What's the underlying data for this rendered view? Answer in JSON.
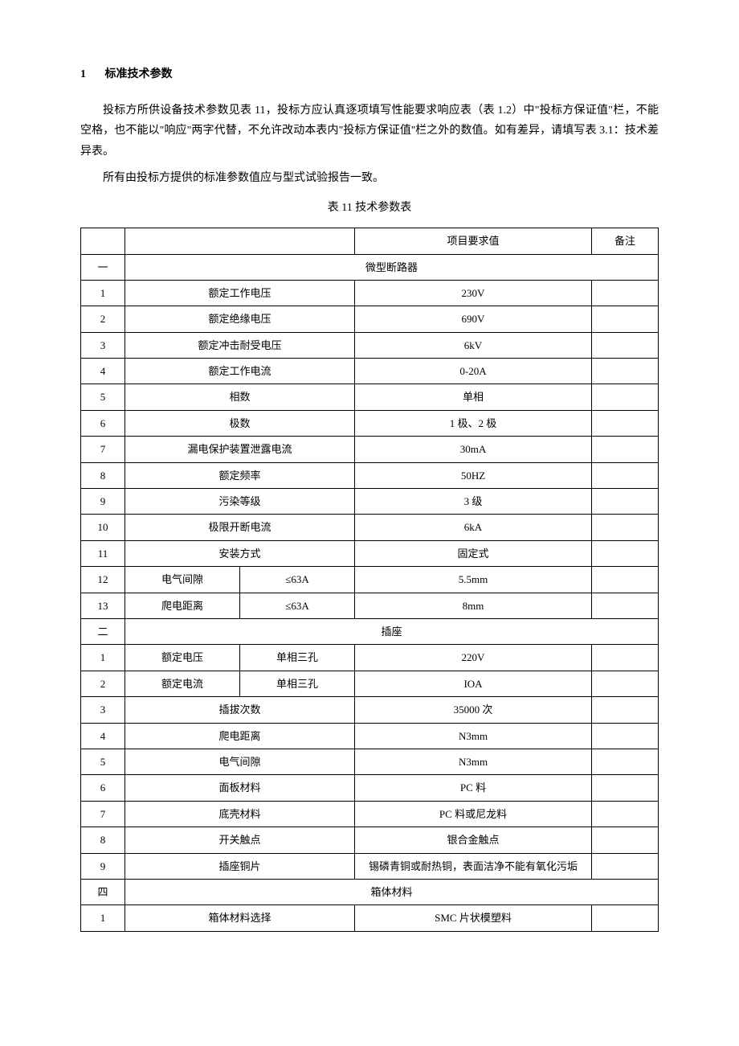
{
  "heading_num": "1",
  "heading_text": "标准技术参数",
  "para1": "投标方所供设备技术参数见表 11，投标方应认真逐项填写性能要求响应表（表 1.2）中\"投标方保证值\"栏，不能空格，也不能以\"响应\"两字代替，不允许改动本表内\"投标方保证值''栏之外的数值。如有差异，请填写表 3.1：技术差异表。",
  "para2": "所有由投标方提供的标准参数值应与型式试验报告一致。",
  "table_caption": "表 11 技术参数表",
  "header": {
    "value_col": "项目要求值",
    "note_col": "备注"
  },
  "sections": [
    {
      "idx": "一",
      "title": "微型断路器",
      "rows": [
        {
          "n": "1",
          "p1": "额定工作电压",
          "p2": "",
          "v": "230V",
          "note": ""
        },
        {
          "n": "2",
          "p1": "额定绝缘电压",
          "p2": "",
          "v": "690V",
          "note": ""
        },
        {
          "n": "3",
          "p1": "额定冲击耐受电压",
          "p2": "",
          "v": "6kV",
          "note": ""
        },
        {
          "n": "4",
          "p1": "额定工作电流",
          "p2": "",
          "v": "0-20A",
          "note": ""
        },
        {
          "n": "5",
          "p1": "相数",
          "p2": "",
          "v": "单相",
          "note": ""
        },
        {
          "n": "6",
          "p1": "极数",
          "p2": "",
          "v": "1 极、2 极",
          "note": ""
        },
        {
          "n": "7",
          "p1": "漏电保护装置泄露电流",
          "p2": "",
          "v": "30mA",
          "note": ""
        },
        {
          "n": "8",
          "p1": "额定频率",
          "p2": "",
          "v": "50HZ",
          "note": ""
        },
        {
          "n": "9",
          "p1": "污染等级",
          "p2": "",
          "v": "3 级",
          "note": ""
        },
        {
          "n": "10",
          "p1": "极限开断电流",
          "p2": "",
          "v": "6kA",
          "note": ""
        },
        {
          "n": "11",
          "p1": "安装方式",
          "p2": "",
          "v": "固定式",
          "note": ""
        },
        {
          "n": "12",
          "p1": "电气间隙",
          "p2": "≤63A",
          "v": "5.5mm",
          "note": ""
        },
        {
          "n": "13",
          "p1": "爬电距离",
          "p2": "≤63A",
          "v": "8mm",
          "note": ""
        }
      ]
    },
    {
      "idx": "二",
      "title": "插座",
      "rows": [
        {
          "n": "1",
          "p1": "额定电压",
          "p2": "单相三孔",
          "v": "220V",
          "note": ""
        },
        {
          "n": "2",
          "p1": "额定电流",
          "p2": "单相三孔",
          "v": "IOA",
          "note": ""
        },
        {
          "n": "3",
          "p1": "插拔次数",
          "p2": "",
          "v": "35000 次",
          "note": ""
        },
        {
          "n": "4",
          "p1": "爬电距离",
          "p2": "",
          "v": "N3mm",
          "note": ""
        },
        {
          "n": "5",
          "p1": "电气间隙",
          "p2": "",
          "v": "N3mm",
          "note": ""
        },
        {
          "n": "6",
          "p1": "面板材料",
          "p2": "",
          "v": "PC 料",
          "note": ""
        },
        {
          "n": "7",
          "p1": "底壳材料",
          "p2": "",
          "v": "PC 料或尼龙料",
          "note": ""
        },
        {
          "n": "8",
          "p1": "开关触点",
          "p2": "",
          "v": "银合金触点",
          "note": ""
        },
        {
          "n": "9",
          "p1": "插座铜片",
          "p2": "",
          "v": "锡磷青铜或耐热铜，表面洁净不能有氧化污垢",
          "note": ""
        }
      ]
    },
    {
      "idx": "四",
      "title": "箱体材料",
      "rows": [
        {
          "n": "1",
          "p1": "箱体材料选择",
          "p2": "",
          "v": "SMC 片状模塑料",
          "note": ""
        }
      ]
    }
  ]
}
